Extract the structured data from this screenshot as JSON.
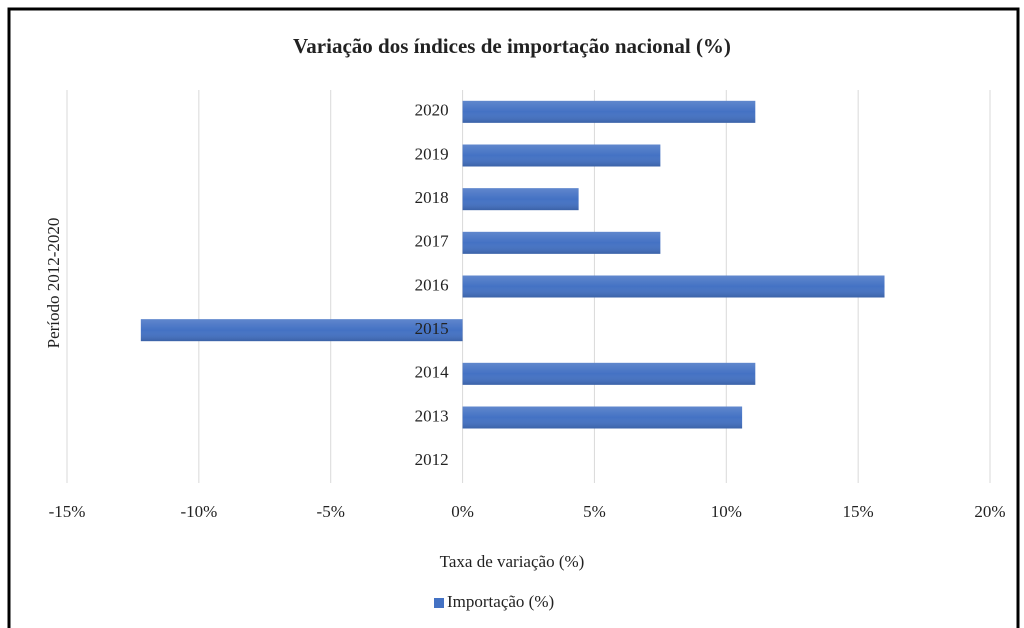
{
  "chart_data": {
    "type": "bar",
    "orientation": "horizontal",
    "title": "Variação dos índices de importação nacional (%)",
    "x_label": "Taxa de variação (%)",
    "y_label": "Período 2012-2020",
    "categories": [
      "2020",
      "2019",
      "2018",
      "2017",
      "2016",
      "2015",
      "2014",
      "2013",
      "2012"
    ],
    "series": [
      {
        "name": "Importação (%)",
        "color": "#4472c4",
        "values": [
          11.1,
          7.5,
          4.4,
          7.5,
          16.0,
          -12.2,
          11.1,
          10.6,
          0
        ]
      }
    ],
    "xlim": [
      -15,
      20
    ],
    "xticks": [
      {
        "value": -15,
        "label": "-15%"
      },
      {
        "value": -10,
        "label": "-10%"
      },
      {
        "value": -5,
        "label": "-5%"
      },
      {
        "value": 0,
        "label": "0%"
      },
      {
        "value": 5,
        "label": "5%"
      },
      {
        "value": 10,
        "label": "10%"
      },
      {
        "value": 15,
        "label": "15%"
      },
      {
        "value": 20,
        "label": "20%"
      }
    ],
    "grid": true,
    "legend": "bottom"
  }
}
